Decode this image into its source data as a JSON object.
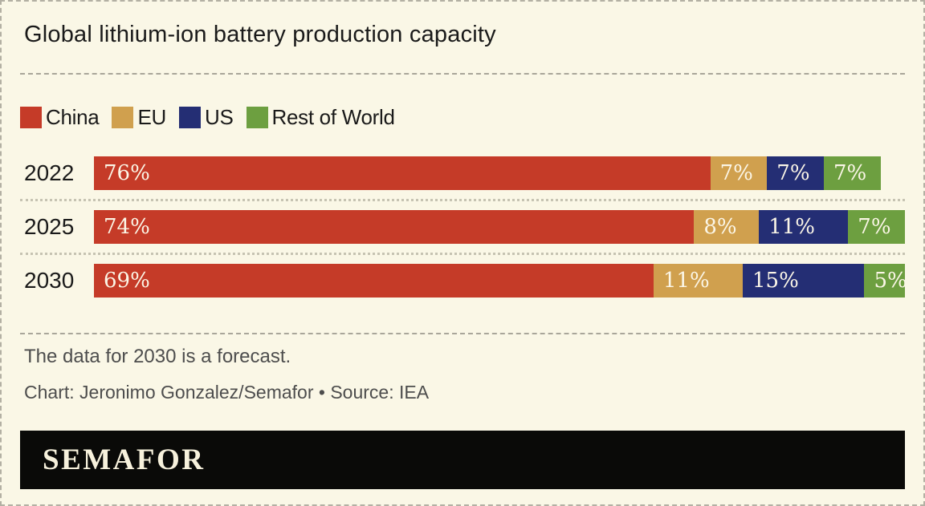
{
  "title": "Global lithium-ion battery production capacity",
  "colors": {
    "background": "#FAF7E6",
    "border": "#b3b0a3",
    "china": "#C53B28",
    "eu": "#D0A04E",
    "us": "#242E74",
    "rest_of_world": "#6D9F40",
    "bar_label_text": "#FBF6E7",
    "note_text": "#4d4d4d",
    "banner_background": "#0a0a08",
    "banner_text": "#F7F1DC"
  },
  "legend": [
    {
      "label": "China",
      "color": "#C53B28"
    },
    {
      "label": "EU",
      "color": "#D0A04E"
    },
    {
      "label": "US",
      "color": "#242E74"
    },
    {
      "label": "Rest of World",
      "color": "#6D9F40"
    }
  ],
  "chart_data": {
    "type": "bar",
    "stacked": true,
    "orientation": "horizontal",
    "title": "Global lithium-ion battery production capacity",
    "categories": [
      "2022",
      "2025",
      "2030"
    ],
    "series": [
      {
        "name": "China",
        "color": "#C53B28",
        "values": [
          76,
          74,
          69
        ]
      },
      {
        "name": "EU",
        "color": "#D0A04E",
        "values": [
          7,
          8,
          11
        ]
      },
      {
        "name": "US",
        "color": "#242E74",
        "values": [
          7,
          11,
          15
        ]
      },
      {
        "name": "Rest of World",
        "color": "#6D9F40",
        "values": [
          7,
          7,
          5
        ]
      }
    ],
    "value_suffix": "%",
    "xlim": [
      0,
      100
    ],
    "grid": false,
    "legend_position": "top"
  },
  "notes": {
    "forecast": "The data for 2030 is a forecast.",
    "credit": "Chart: Jeronimo Gonzalez/Semafor • Source: IEA"
  },
  "banner": {
    "wordmark": "SEMAFOR"
  }
}
